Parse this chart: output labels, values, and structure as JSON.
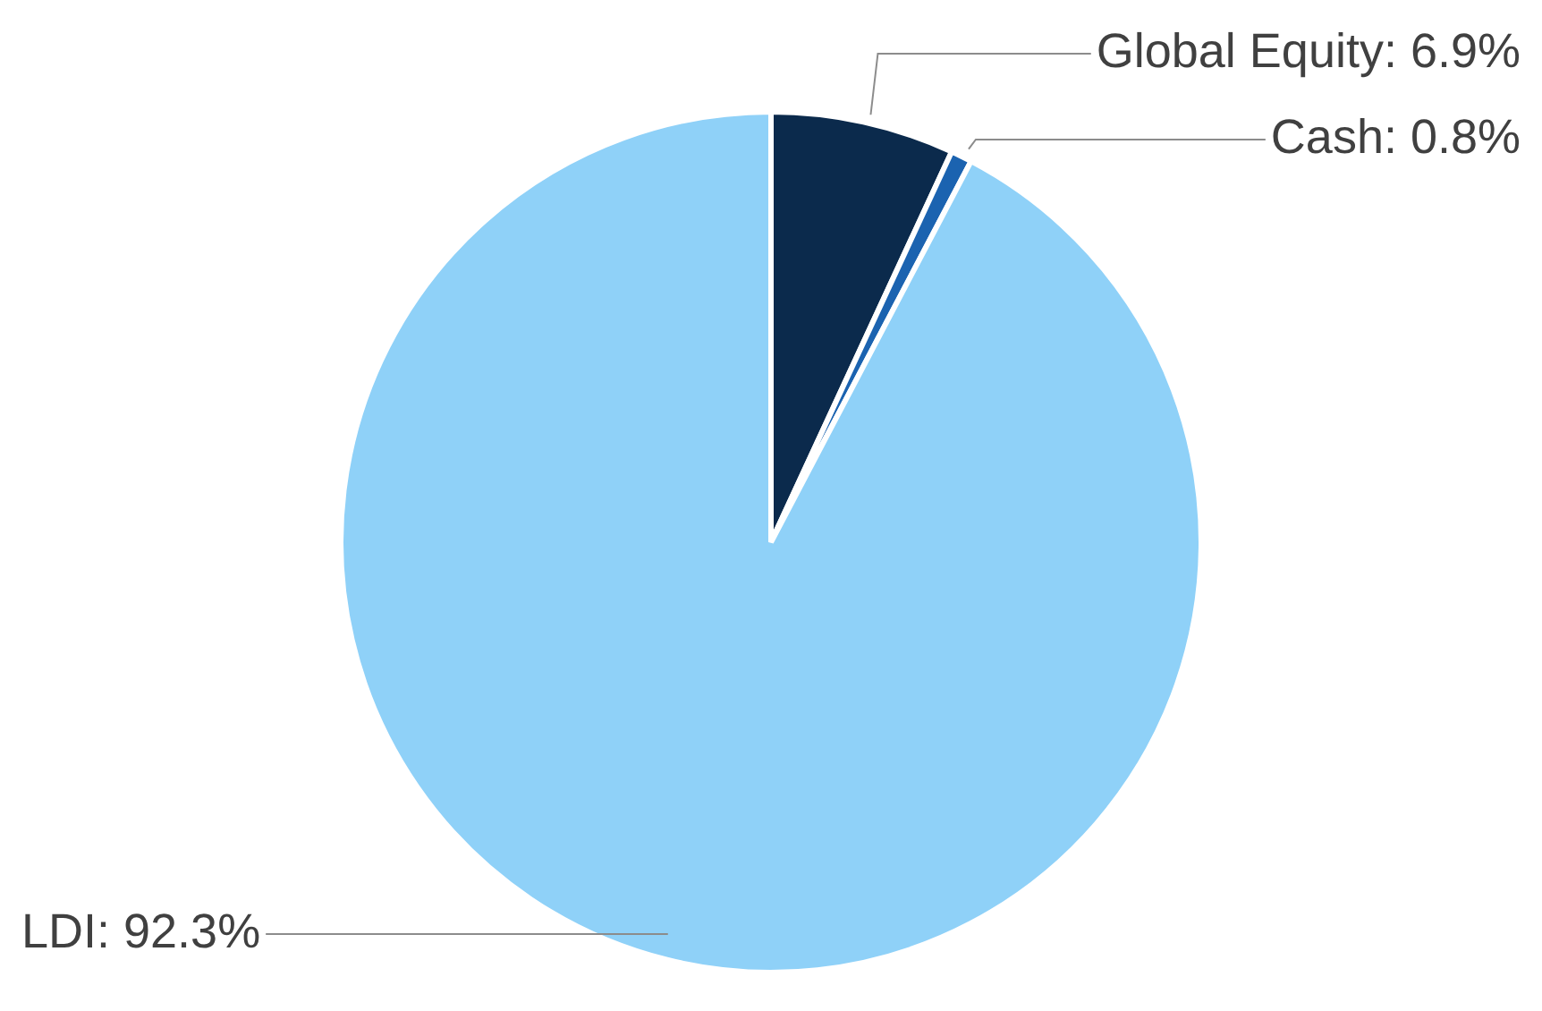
{
  "chart_data": {
    "type": "pie",
    "categories": [
      "Global Equity",
      "Cash",
      "LDI"
    ],
    "values": [
      6.9,
      0.8,
      92.3
    ],
    "value_labels": [
      "6.9%",
      "0.8%",
      "92.3%"
    ],
    "colors": [
      "#0b2a4c",
      "#1b63b0",
      "#8fd1f8"
    ],
    "legend": false
  }
}
